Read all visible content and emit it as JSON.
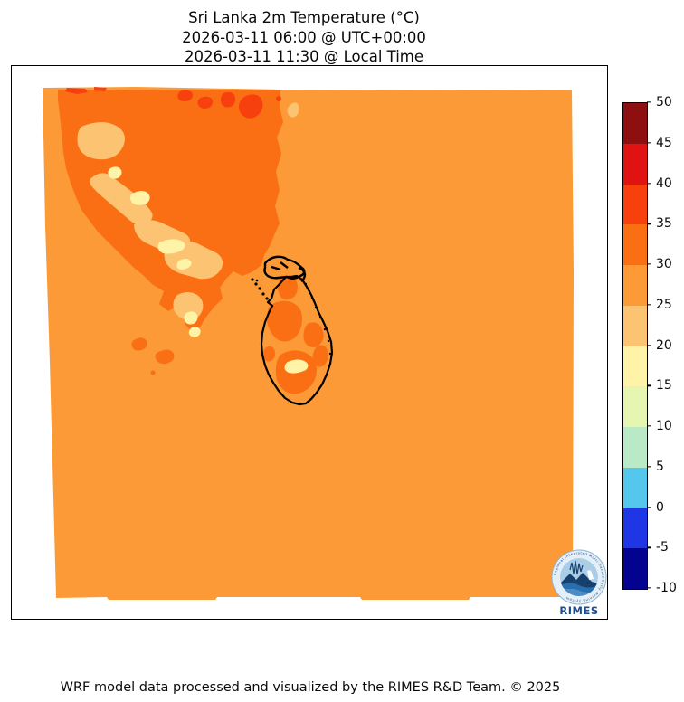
{
  "figure": {
    "title_lines": [
      "Sri Lanka 2m Temperature (°C)",
      "2026-03-11 06:00 @ UTC+00:00",
      "2026-03-11 11:30 @ Local Time"
    ],
    "footer_credit": "WRF model data processed and visualized by the RIMES R&D Team. © 2025"
  },
  "colorbar": {
    "unit": "°C",
    "orientation": "vertical",
    "tick_labels": [
      "50",
      "45",
      "40",
      "35",
      "30",
      "25",
      "20",
      "15",
      "10",
      "5",
      "0",
      "-5",
      "-10"
    ],
    "bands_top_to_bottom": [
      {
        "range_c": "45 to 50",
        "color": "#8E0F10"
      },
      {
        "range_c": "40 to 45",
        "color": "#E01212"
      },
      {
        "range_c": "35 to 40",
        "color": "#F8400F"
      },
      {
        "range_c": "30 to 35",
        "color": "#FA6E14"
      },
      {
        "range_c": "25 to 30",
        "color": "#FB9A36"
      },
      {
        "range_c": "20 to 25",
        "color": "#FCC472"
      },
      {
        "range_c": "15 to 20",
        "color": "#FEF3A6"
      },
      {
        "range_c": "10 to 15",
        "color": "#E6F5AF"
      },
      {
        "range_c": "5 to 10",
        "color": "#BAE9C8"
      },
      {
        "range_c": "0 to 5",
        "color": "#55C7EC"
      },
      {
        "range_c": "-5 to 0",
        "color": "#1E36E6"
      },
      {
        "range_c": "-10 to -5",
        "color": "#04038F"
      }
    ]
  },
  "logo": {
    "label": "RIMES",
    "ring_text": "Regional Integrated Multi-Hazard Early Warning System",
    "accent_color": "#1C4E8F"
  },
  "chart_data": {
    "type": "heatmap",
    "title": "Sri Lanka 2m Temperature (°C)",
    "valid_time_utc": "2026-03-11 06:00 @ UTC+00:00",
    "valid_time_local": "2026-03-11 11:30 @ Local Time",
    "variable": "2m Temperature",
    "unit": "°C",
    "colorbar_range": [
      -10,
      50
    ],
    "colorbar_step": 5,
    "legend_position": "right",
    "coastline_color": "#000000",
    "regions": [
      {
        "area": "ocean / background field",
        "temp_c": "25-30"
      },
      {
        "area": "southern India interior landmass",
        "temp_c": "30-35"
      },
      {
        "area": "southern India hottest spots along north edge",
        "temp_c": "35-40"
      },
      {
        "area": "Western Ghats cool band (India)",
        "temp_c": "20-25"
      },
      {
        "area": "Western Ghats coolest pockets (India)",
        "temp_c": "15-20"
      },
      {
        "area": "Sri Lanka interior lowland patches",
        "temp_c": "30-35"
      },
      {
        "area": "Sri Lanka central highlands pocket",
        "temp_c": "15-20"
      },
      {
        "area": "Sri Lanka coast and remainder of island",
        "temp_c": "25-30"
      }
    ]
  }
}
